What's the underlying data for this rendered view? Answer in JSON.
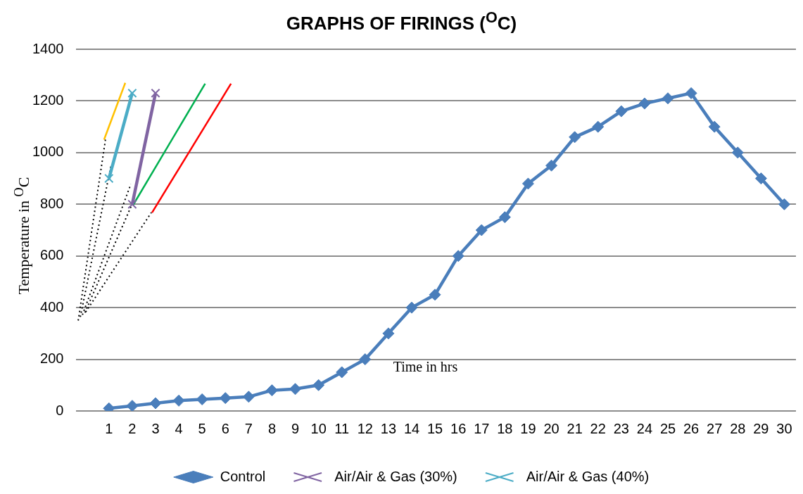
{
  "chart_data": {
    "type": "line",
    "title": "GRAPHS OF FIRINGS ($^{O}$C)",
    "xlabel": "Time in hrs",
    "ylabel": "Temperature in $^{O}$C",
    "x": [
      1,
      2,
      3,
      4,
      5,
      6,
      7,
      8,
      9,
      10,
      11,
      12,
      13,
      14,
      15,
      16,
      17,
      18,
      19,
      20,
      21,
      22,
      23,
      24,
      25,
      26,
      27,
      28,
      29,
      30
    ],
    "series": [
      {
        "name": "Control",
        "color": "#4a7ebb",
        "marker": "diamond",
        "values": [
          10,
          20,
          30,
          40,
          45,
          50,
          55,
          80,
          85,
          100,
          150,
          200,
          300,
          400,
          450,
          600,
          700,
          750,
          880,
          950,
          1060,
          1100,
          1160,
          1190,
          1210,
          1230,
          1100,
          1000,
          900,
          800
        ]
      },
      {
        "name": "Air/Air & Gas (30%)",
        "color": "#8064a2",
        "marker": "cross",
        "x": [
          2,
          3
        ],
        "values": [
          800,
          1230
        ]
      },
      {
        "name": "Air/Air & Gas (40%)",
        "color": "#4bacc6",
        "marker": "cross",
        "x": [
          1,
          2
        ],
        "values": [
          900,
          1230
        ]
      },
      {
        "color": "#000000",
        "marker": "none",
        "line_style": "dotted",
        "x": [
          -0.32,
          0.85
        ],
        "values": [
          350,
          1050
        ]
      },
      {
        "color": "#000000",
        "marker": "none",
        "line_style": "dotted",
        "x": [
          -0.23,
          1.09
        ],
        "values": [
          364,
          951
        ]
      },
      {
        "color": "#000000",
        "marker": "none",
        "line_style": "dotted",
        "x": [
          -0.14,
          1.94
        ],
        "values": [
          372,
          878
        ]
      },
      {
        "color": "#000000",
        "marker": "none",
        "line_style": "dotted",
        "x": [
          -0.03,
          1.97
        ],
        "values": [
          381,
          796
        ]
      },
      {
        "color": "#000000",
        "marker": "none",
        "line_style": "dotted",
        "x": [
          0,
          2.82
        ],
        "values": [
          383,
          768
        ]
      },
      {
        "color": "#ffc000",
        "marker": "none",
        "x": [
          0.79,
          1.7
        ],
        "values": [
          1050,
          1270
        ]
      },
      {
        "color": "#00b050",
        "marker": "none",
        "x": [
          2.03,
          5.13
        ],
        "values": [
          796,
          1267
        ]
      },
      {
        "color": "#ff0000",
        "marker": "none",
        "x": [
          2.85,
          6.24
        ],
        "values": [
          768,
          1267
        ]
      }
    ],
    "xlim": [
      -0.4,
      30.5
    ],
    "xticks": [
      1,
      2,
      3,
      4,
      5,
      6,
      7,
      8,
      9,
      10,
      11,
      12,
      13,
      14,
      15,
      16,
      17,
      18,
      19,
      20,
      21,
      22,
      23,
      24,
      25,
      26,
      27,
      28,
      29,
      30
    ],
    "ylim": [
      0,
      1400
    ],
    "yticks": [
      0,
      200,
      400,
      600,
      800,
      1000,
      1200,
      1400
    ],
    "grid": "y",
    "legend": "bottom"
  }
}
